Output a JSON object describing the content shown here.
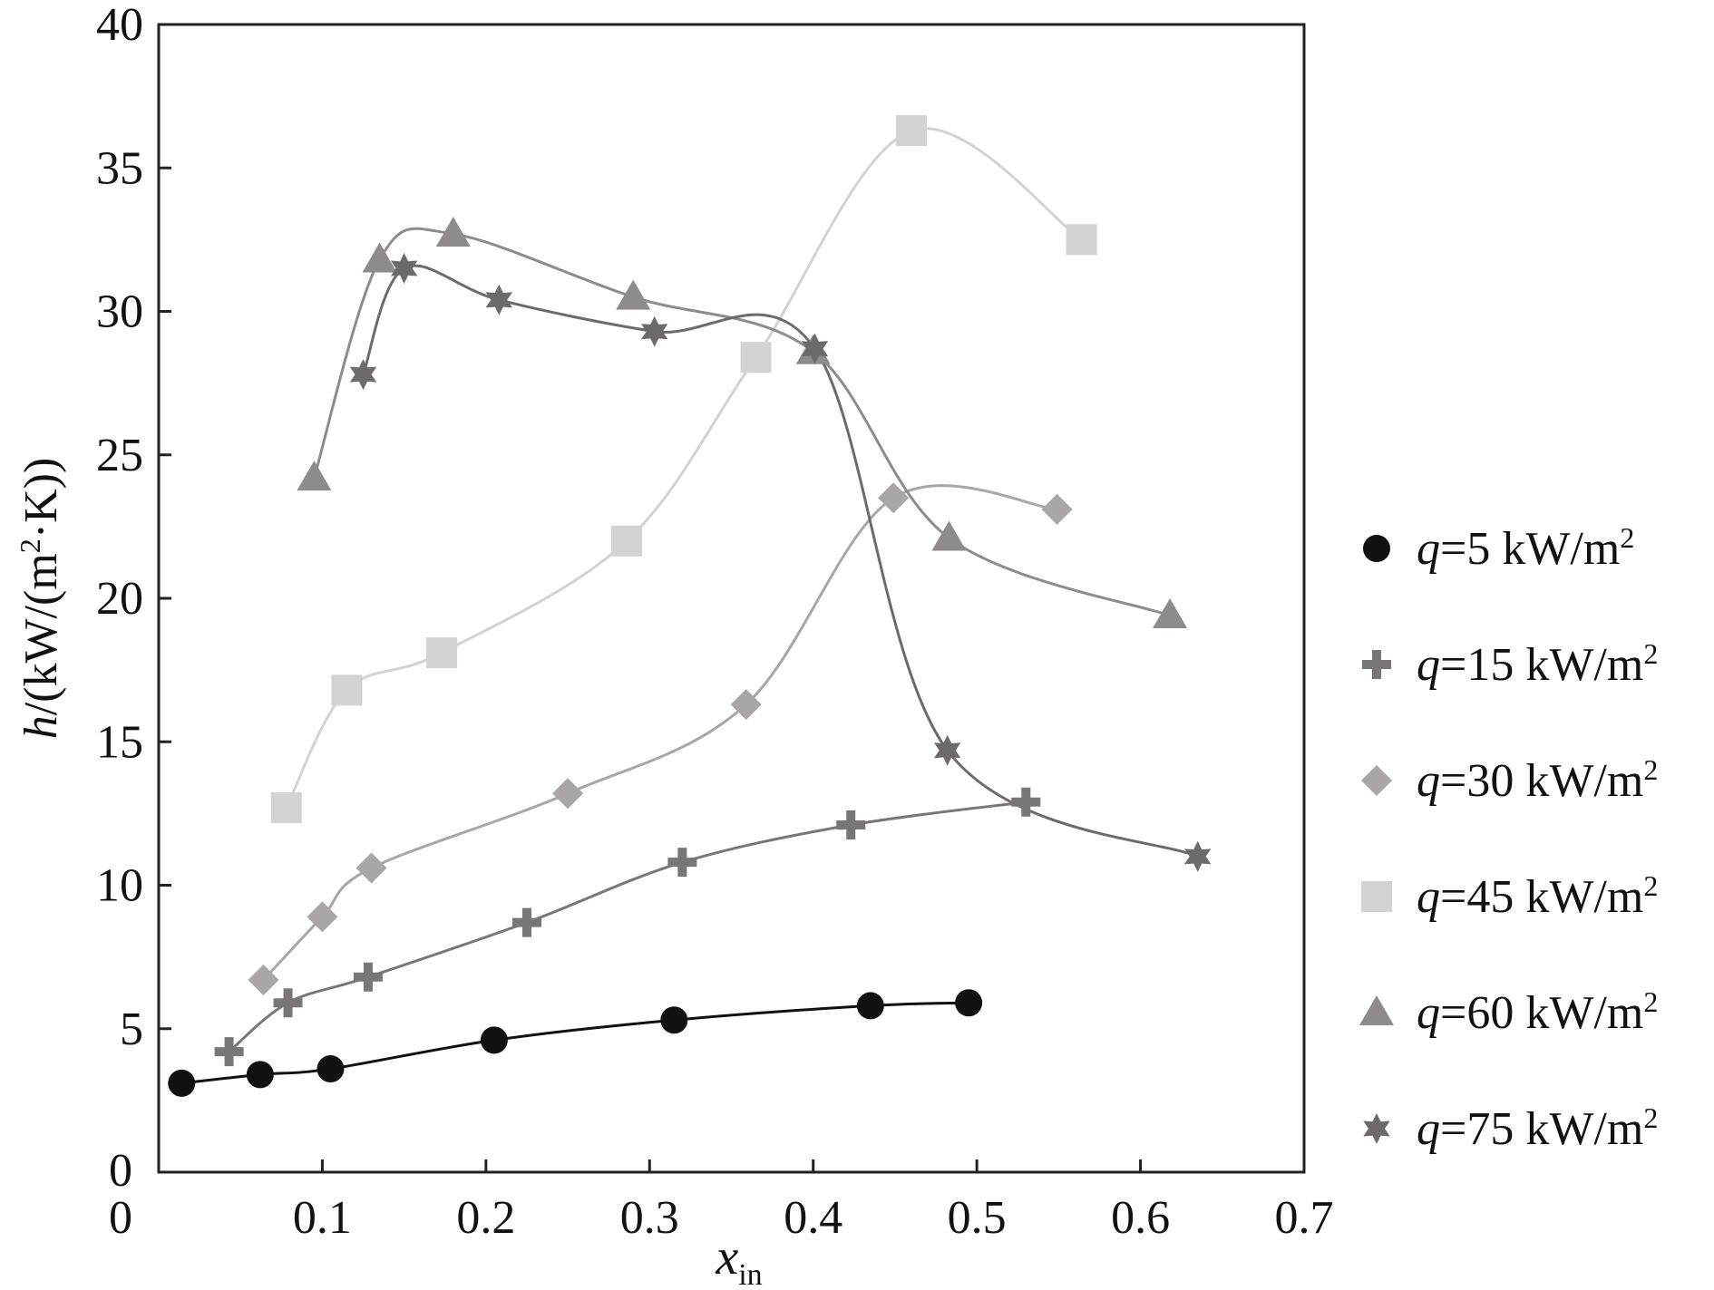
{
  "chart_data": {
    "type": "line",
    "xlabel": {
      "main": "x",
      "sub": "in"
    },
    "ylabel": {
      "italic": "h",
      "rest": "/(kW/(m",
      "sup": "2",
      "tail": "·K))"
    },
    "xlim": [
      0,
      0.7
    ],
    "ylim": [
      0,
      40
    ],
    "xticks": [
      "0",
      "0.1",
      "0.2",
      "0.3",
      "0.4",
      "0.5",
      "0.6",
      "0.7"
    ],
    "yticks": [
      "5",
      "10",
      "15",
      "20",
      "25",
      "30",
      "35",
      "40"
    ],
    "grid": false,
    "legend_position": "right",
    "series": [
      {
        "name": {
          "var": "q",
          "text": "=5 kW/m",
          "sup": "2"
        },
        "marker": "circle",
        "color": "#111111",
        "x": [
          0.014,
          0.062,
          0.105,
          0.205,
          0.315,
          0.435,
          0.495
        ],
        "y": [
          3.1,
          3.4,
          3.6,
          4.6,
          5.3,
          5.8,
          5.9
        ]
      },
      {
        "name": {
          "var": "q",
          "text": "=15 kW/m",
          "sup": "2"
        },
        "marker": "plus",
        "color": "#7a7676",
        "x": [
          0.043,
          0.079,
          0.128,
          0.225,
          0.32,
          0.423,
          0.53
        ],
        "y": [
          4.2,
          5.9,
          6.8,
          8.7,
          10.8,
          12.1,
          12.9
        ]
      },
      {
        "name": {
          "var": "q",
          "text": "=30 kW/m",
          "sup": "2"
        },
        "marker": "diamond",
        "color": "#aaa6a6",
        "x": [
          0.064,
          0.1,
          0.13,
          0.25,
          0.359,
          0.449,
          0.549
        ],
        "y": [
          6.7,
          8.9,
          10.6,
          13.2,
          16.3,
          23.5,
          23.1
        ]
      },
      {
        "name": {
          "var": "q",
          "text": "=45 kW/m",
          "sup": "2"
        },
        "marker": "square",
        "color": "#d4d2d2",
        "x": [
          0.078,
          0.115,
          0.173,
          0.286,
          0.365,
          0.46,
          0.564
        ],
        "y": [
          12.7,
          16.8,
          18.1,
          22.0,
          28.4,
          36.3,
          32.5
        ]
      },
      {
        "name": {
          "var": "q",
          "text": "=60 kW/m",
          "sup": "2"
        },
        "marker": "triangle",
        "color": "#8f8b8b",
        "x": [
          0.095,
          0.135,
          0.18,
          0.29,
          0.4,
          0.483,
          0.618
        ],
        "y": [
          24.2,
          31.8,
          32.7,
          30.5,
          28.6,
          22.1,
          19.4
        ]
      },
      {
        "name": {
          "var": "q",
          "text": "=75 kW/m",
          "sup": "2"
        },
        "marker": "star",
        "color": "#6f6a6a",
        "x": [
          0.125,
          0.15,
          0.208,
          0.303,
          0.401,
          0.482,
          0.635
        ],
        "y": [
          27.8,
          31.5,
          30.4,
          29.3,
          28.7,
          14.7,
          11.0
        ]
      }
    ]
  }
}
